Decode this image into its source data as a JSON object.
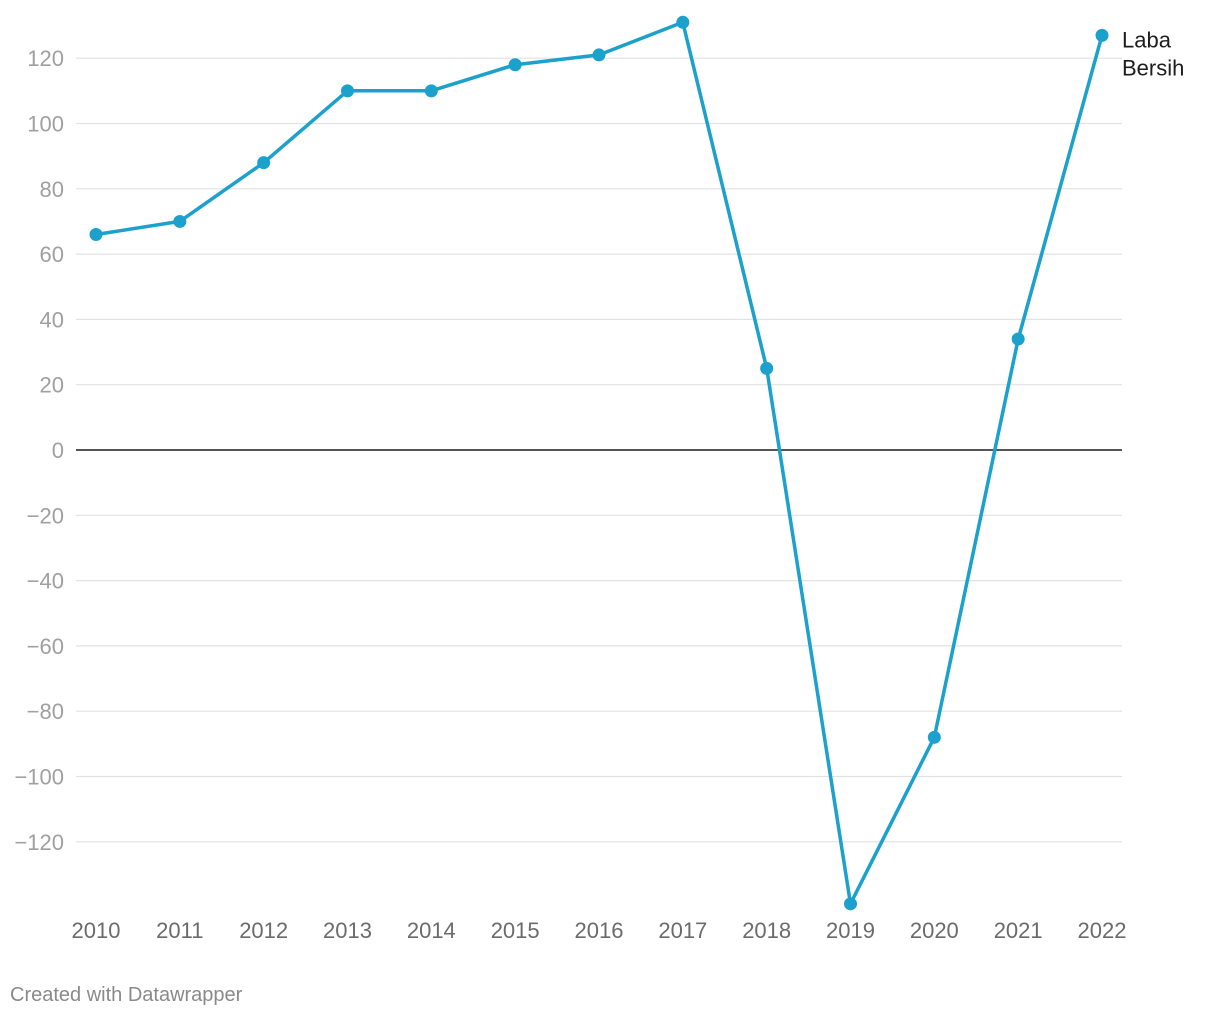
{
  "chart_data": {
    "type": "line",
    "x": [
      "2010",
      "2011",
      "2012",
      "2013",
      "2014",
      "2015",
      "2016",
      "2017",
      "2018",
      "2019",
      "2020",
      "2021",
      "2022"
    ],
    "series": [
      {
        "name": "Laba Bersih",
        "label_lines": [
          "Laba",
          "Bersih"
        ],
        "values": [
          66,
          70,
          88,
          110,
          110,
          118,
          121,
          131,
          25,
          -139,
          -88,
          34,
          127
        ],
        "color": "#1ba1cc"
      }
    ],
    "y_ticks": [
      120,
      100,
      80,
      60,
      40,
      20,
      0,
      -20,
      -40,
      -60,
      -80,
      -100,
      -120
    ],
    "y_tick_labels": [
      "120",
      "100",
      "80",
      "60",
      "40",
      "20",
      "0",
      "−20",
      "−40",
      "−60",
      "−80",
      "−100",
      "−120"
    ],
    "ylim": [
      -139,
      131
    ],
    "grid": true,
    "colors": {
      "grid": "#e2e2e2",
      "zero_line": "#1d1d1d"
    }
  },
  "credit": "Created with Datawrapper"
}
